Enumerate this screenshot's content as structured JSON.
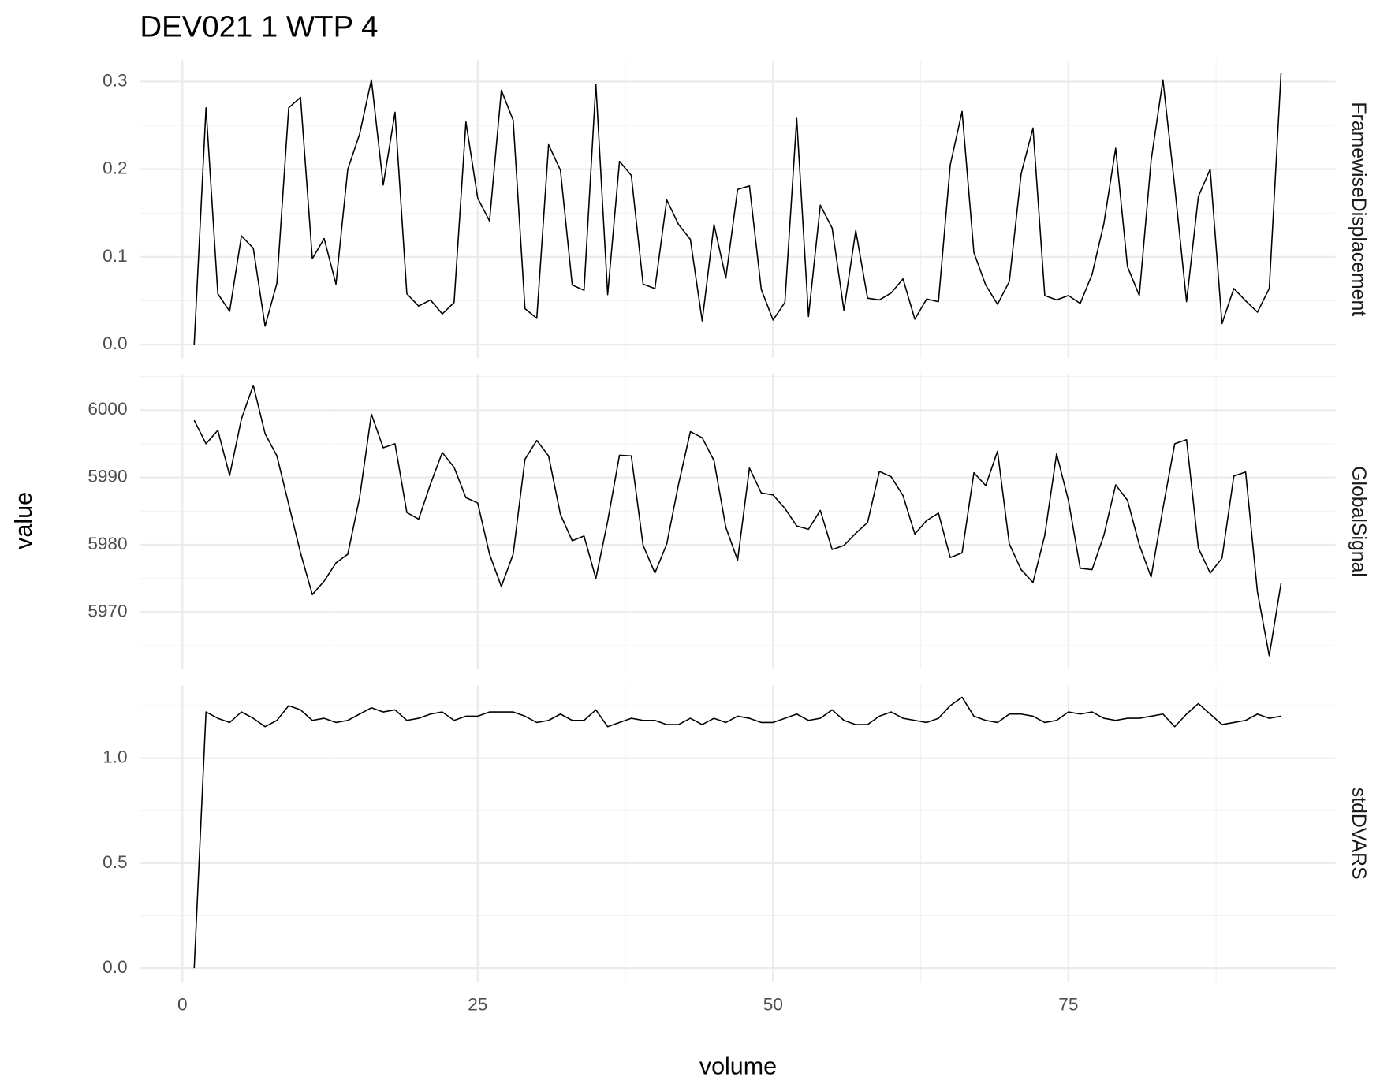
{
  "chart_data": {
    "type": "line",
    "title": "DEV021  1  WTP  4",
    "x_label": "volume",
    "y_label": "value",
    "color": "#000000",
    "grid": true,
    "xlim": [
      -3.6,
      97.6
    ],
    "xticks": [
      0,
      25,
      50,
      75
    ],
    "minor_xticks": [
      12.5,
      37.5,
      62.5,
      87.5
    ],
    "x": [
      1,
      2,
      3,
      4,
      5,
      6,
      7,
      8,
      9,
      10,
      11,
      12,
      13,
      14,
      15,
      16,
      17,
      18,
      19,
      20,
      21,
      22,
      23,
      24,
      25,
      26,
      27,
      28,
      29,
      30,
      31,
      32,
      33,
      34,
      35,
      36,
      37,
      38,
      39,
      40,
      41,
      42,
      43,
      44,
      45,
      46,
      47,
      48,
      49,
      50,
      51,
      52,
      53,
      54,
      55,
      56,
      57,
      58,
      59,
      60,
      61,
      62,
      63,
      64,
      65,
      66,
      67,
      68,
      69,
      70,
      71,
      72,
      73,
      74,
      75,
      76,
      77,
      78,
      79,
      80,
      81,
      82,
      83,
      84,
      85,
      86,
      87,
      88,
      89,
      90,
      91,
      92,
      93
    ],
    "facets": [
      {
        "name": "FramewiseDisplacement",
        "ylim": [
          -0.015,
          0.324
        ],
        "yticks": [
          {
            "value": 0,
            "label": "0.0"
          },
          0.1,
          0.2,
          0.3
        ],
        "minor_yticks": [
          0.05,
          0.15,
          0.25
        ],
        "values": [
          0,
          0.27,
          0.058,
          0.038,
          0.124,
          0.11,
          0.021,
          0.07,
          0.27,
          0.282,
          0.098,
          0.121,
          0.069,
          0.2,
          0.24,
          0.302,
          0.182,
          0.265,
          0.058,
          0.044,
          0.051,
          0.035,
          0.048,
          0.254,
          0.167,
          0.141,
          0.29,
          0.256,
          0.041,
          0.03,
          0.228,
          0.199,
          0.068,
          0.062,
          0.297,
          0.057,
          0.209,
          0.193,
          0.069,
          0.064,
          0.165,
          0.137,
          0.12,
          0.027,
          0.137,
          0.076,
          0.177,
          0.181,
          0.063,
          0.028,
          0.048,
          0.258,
          0.032,
          0.159,
          0.133,
          0.039,
          0.13,
          0.053,
          0.051,
          0.059,
          0.075,
          0.029,
          0.052,
          0.049,
          0.205,
          0.266,
          0.105,
          0.068,
          0.046,
          0.072,
          0.195,
          0.247,
          0.056,
          0.051,
          0.056,
          0.047,
          0.08,
          0.138,
          0.224,
          0.089,
          0.056,
          0.21,
          0.302,
          0.18,
          0.049,
          0.169,
          0.2,
          0.024,
          0.064,
          0.05,
          0.037,
          0.064,
          0.31
        ]
      },
      {
        "name": "GlobalSignal",
        "ylim": [
          5961.5,
          6005.4
        ],
        "yticks": [
          5970,
          5980,
          5990,
          6000
        ],
        "minor_yticks": [
          5965,
          5975,
          5985,
          5995,
          6005
        ],
        "values": [
          5998.5,
          5995,
          5997,
          5990.3,
          5998.7,
          6003.7,
          5996.5,
          5993.2,
          5986,
          5978.8,
          5972.6,
          5974.6,
          5977.3,
          5978.6,
          5987,
          5999.4,
          5994.4,
          5995,
          5984.8,
          5983.8,
          5989,
          5993.7,
          5991.5,
          5987,
          5986.2,
          5978.6,
          5973.8,
          5978.6,
          5992.7,
          5995.5,
          5993.2,
          5984.5,
          5980.6,
          5981.3,
          5975,
          5983.5,
          5993.3,
          5993.2,
          5979.9,
          5975.8,
          5980.1,
          5989,
          5996.8,
          5995.9,
          5992.5,
          5982.6,
          5977.7,
          5991.4,
          5987.7,
          5987.4,
          5985.4,
          5982.8,
          5982.3,
          5985.1,
          5979.3,
          5979.9,
          5981.7,
          5983.3,
          5990.9,
          5990.1,
          5987.3,
          5981.6,
          5983.6,
          5984.7,
          5978.1,
          5978.8,
          5990.7,
          5988.8,
          5993.9,
          5980.1,
          5976.3,
          5974.4,
          5981.4,
          5993.5,
          5986.6,
          5976.5,
          5976.3,
          5981.4,
          5988.9,
          5986.6,
          5980,
          5975.2,
          5985.4,
          5995,
          5995.6,
          5979.5,
          5975.8,
          5978,
          5990.2,
          5990.8,
          5973,
          5963.5,
          5974.3
        ]
      },
      {
        "name": "stdDVARS",
        "ylim": [
          -0.064,
          1.347
        ],
        "yticks": [
          {
            "value": 0,
            "label": "0.0"
          },
          0.5,
          {
            "value": 1,
            "label": "1.0"
          }
        ],
        "minor_yticks": [
          0.25,
          0.75,
          1.25
        ],
        "values": [
          0,
          1.22,
          1.19,
          1.17,
          1.22,
          1.19,
          1.15,
          1.18,
          1.25,
          1.23,
          1.18,
          1.19,
          1.17,
          1.18,
          1.21,
          1.24,
          1.22,
          1.23,
          1.18,
          1.19,
          1.21,
          1.22,
          1.18,
          1.2,
          1.2,
          1.22,
          1.22,
          1.22,
          1.2,
          1.17,
          1.18,
          1.21,
          1.18,
          1.18,
          1.23,
          1.15,
          1.17,
          1.19,
          1.18,
          1.18,
          1.16,
          1.16,
          1.19,
          1.16,
          1.19,
          1.17,
          1.2,
          1.19,
          1.17,
          1.17,
          1.19,
          1.21,
          1.18,
          1.19,
          1.23,
          1.18,
          1.16,
          1.16,
          1.2,
          1.22,
          1.19,
          1.18,
          1.17,
          1.19,
          1.25,
          1.29,
          1.2,
          1.18,
          1.17,
          1.21,
          1.21,
          1.2,
          1.17,
          1.18,
          1.22,
          1.21,
          1.22,
          1.19,
          1.18,
          1.19,
          1.19,
          1.2,
          1.21,
          1.15,
          1.21,
          1.26,
          1.21,
          1.16,
          1.17,
          1.18,
          1.21,
          1.19,
          1.2
        ]
      }
    ]
  }
}
